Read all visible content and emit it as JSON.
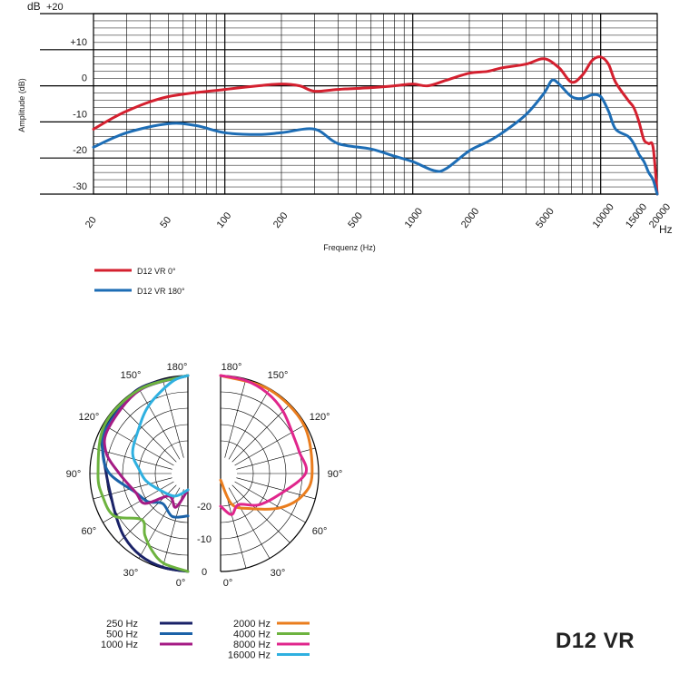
{
  "model_name": "D12 VR",
  "colors": {
    "d12_0": "#d4202f",
    "d12_180": "#1d6db5",
    "f250": "#1a2268",
    "f500": "#1b62a8",
    "f1000": "#a51b84",
    "f2000": "#ea7d1e",
    "f4000": "#6db33f",
    "f8000": "#e0268c",
    "f16000": "#2fb0e0"
  },
  "chart_data": [
    {
      "type": "line",
      "xscale": "log",
      "xlim": [
        20,
        20000
      ],
      "ylim": [
        -30,
        20
      ],
      "xlabel": "Frequenz (Hz)",
      "ylabel": "Amplitude (dB)",
      "x_unit": "Hz",
      "y_unit_label": "dB",
      "xticks": [
        "20",
        "50",
        "100",
        "200",
        "500",
        "1000",
        "2000",
        "5000",
        "10000",
        "15000",
        "20000"
      ],
      "yticks": [
        "+20",
        "+10",
        "0",
        "-10",
        "-20",
        "-30"
      ],
      "legend_position": "bottom-left",
      "series": [
        {
          "name": "D12 VR 0°",
          "color": "#d4202f",
          "points": [
            [
              20,
              -12
            ],
            [
              30,
              -7
            ],
            [
              50,
              -3
            ],
            [
              100,
              -1
            ],
            [
              150,
              0
            ],
            [
              200,
              0.5
            ],
            [
              250,
              0
            ],
            [
              300,
              -1.5
            ],
            [
              400,
              -1
            ],
            [
              600,
              -0.5
            ],
            [
              800,
              0
            ],
            [
              1000,
              0.5
            ],
            [
              1200,
              0
            ],
            [
              1500,
              1.5
            ],
            [
              2000,
              3.5
            ],
            [
              2500,
              4
            ],
            [
              3000,
              5
            ],
            [
              4000,
              6
            ],
            [
              5000,
              7.5
            ],
            [
              6000,
              5
            ],
            [
              7000,
              1
            ],
            [
              8000,
              3
            ],
            [
              9000,
              7
            ],
            [
              10000,
              8
            ],
            [
              11000,
              6
            ],
            [
              12000,
              1
            ],
            [
              14000,
              -4
            ],
            [
              15000,
              -6
            ],
            [
              16000,
              -10
            ],
            [
              17000,
              -15
            ],
            [
              18000,
              -16
            ],
            [
              19000,
              -17
            ],
            [
              20000,
              -30
            ]
          ]
        },
        {
          "name": "D12 VR 180°",
          "color": "#1d6db5",
          "points": [
            [
              20,
              -17
            ],
            [
              30,
              -13
            ],
            [
              50,
              -10.5
            ],
            [
              70,
              -11
            ],
            [
              100,
              -13
            ],
            [
              150,
              -13.5
            ],
            [
              200,
              -13
            ],
            [
              300,
              -12
            ],
            [
              400,
              -16
            ],
            [
              600,
              -17.5
            ],
            [
              800,
              -19.5
            ],
            [
              1000,
              -21
            ],
            [
              1300,
              -23.5
            ],
            [
              1500,
              -23
            ],
            [
              2000,
              -18
            ],
            [
              2500,
              -15.5
            ],
            [
              3000,
              -13
            ],
            [
              4000,
              -8
            ],
            [
              5000,
              -2
            ],
            [
              5500,
              1.5
            ],
            [
              6000,
              0.5
            ],
            [
              7000,
              -3
            ],
            [
              8000,
              -3.5
            ],
            [
              9000,
              -2.5
            ],
            [
              10000,
              -3
            ],
            [
              11000,
              -7
            ],
            [
              12000,
              -12
            ],
            [
              14000,
              -14
            ],
            [
              15000,
              -16
            ],
            [
              16000,
              -19
            ],
            [
              17000,
              -21
            ],
            [
              18000,
              -24
            ],
            [
              19000,
              -26
            ],
            [
              20000,
              -30
            ]
          ]
        }
      ]
    },
    {
      "type": "polar",
      "angle_unit": "degrees",
      "r_unit": "dB",
      "angle_ticks": [
        "180°",
        "150°",
        "120°",
        "90°",
        "60°",
        "30°",
        "0°"
      ],
      "radial_tick_labels": [
        "-20",
        "-10",
        "0"
      ],
      "legend_position": "bottom",
      "series": [
        {
          "name": "250 Hz",
          "side": "left",
          "color": "#1a2268",
          "points": [
            [
              0,
              0
            ],
            [
              15,
              -0.3
            ],
            [
              30,
              -1
            ],
            [
              45,
              -2.5
            ],
            [
              60,
              -4.5
            ],
            [
              75,
              -5.5
            ],
            [
              90,
              -5
            ],
            [
              110,
              -2
            ],
            [
              120,
              -1
            ],
            [
              150,
              0
            ],
            [
              180,
              0
            ]
          ]
        },
        {
          "name": "500 Hz",
          "side": "left",
          "color": "#1b62a8",
          "points": [
            [
              0,
              -17
            ],
            [
              20,
              -16
            ],
            [
              40,
              -18
            ],
            [
              55,
              -15
            ],
            [
              70,
              -13
            ],
            [
              90,
              -6
            ],
            [
              105,
              -3
            ],
            [
              120,
              -1.5
            ],
            [
              150,
              -0.5
            ],
            [
              180,
              0
            ]
          ]
        },
        {
          "name": "1000 Hz",
          "side": "left",
          "color": "#a51b84",
          "points": [
            [
              0,
              -25
            ],
            [
              20,
              -19
            ],
            [
              40,
              -21
            ],
            [
              55,
              -14
            ],
            [
              70,
              -13
            ],
            [
              90,
              -9
            ],
            [
              105,
              -4
            ],
            [
              120,
              -2
            ],
            [
              150,
              -0.5
            ],
            [
              180,
              0
            ]
          ]
        },
        {
          "name": "2000 Hz",
          "side": "right",
          "color": "#ea7d1e",
          "points": [
            [
              0,
              -28
            ],
            [
              20,
              -20
            ],
            [
              40,
              -16
            ],
            [
              60,
              -9
            ],
            [
              75,
              -4
            ],
            [
              90,
              -2
            ],
            [
              120,
              -0.5
            ],
            [
              150,
              -0.3
            ],
            [
              180,
              0
            ]
          ]
        },
        {
          "name": "4000 Hz",
          "side": "left",
          "color": "#6db33f",
          "points": [
            [
              0,
              0
            ],
            [
              15,
              -1.5
            ],
            [
              25,
              -4
            ],
            [
              35,
              -7
            ],
            [
              45,
              -10
            ],
            [
              60,
              -4
            ],
            [
              75,
              -3
            ],
            [
              90,
              -2.5
            ],
            [
              120,
              -0.5
            ],
            [
              150,
              -0.3
            ],
            [
              180,
              0
            ]
          ]
        },
        {
          "name": "8000 Hz",
          "side": "right",
          "color": "#e0268c",
          "points": [
            [
              0,
              -20
            ],
            [
              15,
              -17
            ],
            [
              30,
              -19
            ],
            [
              50,
              -15
            ],
            [
              70,
              -11
            ],
            [
              90,
              -4
            ],
            [
              105,
              -5
            ],
            [
              115,
              -5
            ],
            [
              135,
              -3
            ],
            [
              150,
              -1.5
            ],
            [
              165,
              -0.5
            ],
            [
              180,
              0
            ]
          ]
        },
        {
          "name": "16000 Hz",
          "side": "left",
          "color": "#2fb0e0",
          "points": [
            [
              0,
              -25
            ],
            [
              30,
              -22
            ],
            [
              60,
              -20
            ],
            [
              80,
              -17
            ],
            [
              95,
              -15
            ],
            [
              110,
              -12
            ],
            [
              130,
              -10
            ],
            [
              150,
              -6
            ],
            [
              170,
              -1.5
            ],
            [
              180,
              0
            ]
          ]
        }
      ]
    }
  ]
}
